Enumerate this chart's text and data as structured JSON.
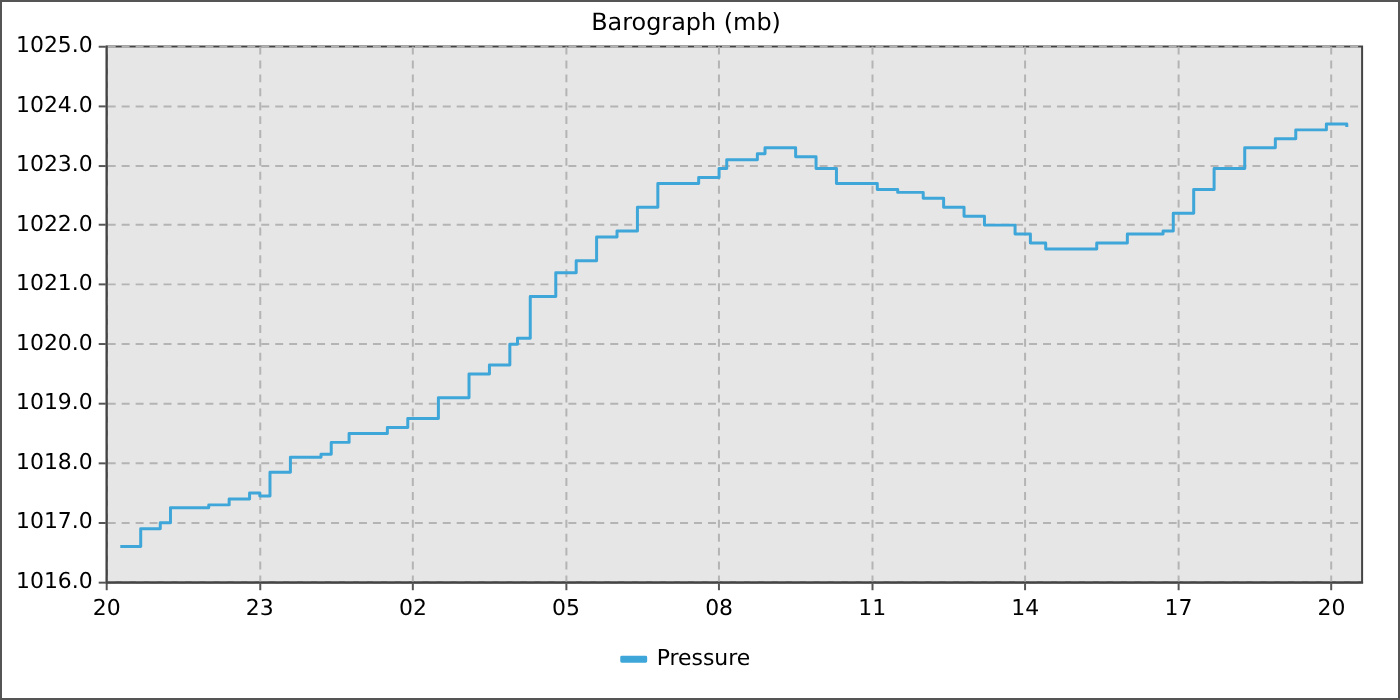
{
  "chart_data": {
    "type": "step",
    "title": "Barograph (mb)",
    "x": [
      "--01-01T20:16",
      "--01-01T20:40",
      "--01-01T21:03",
      "--01-01T21:15",
      "--01-01T22:00",
      "--01-01T22:24",
      "--01-01T22:48",
      "--01-01T23:00",
      "--01-01T23:12",
      "--01-01T23:36",
      "--01-02T00:12",
      "--01-02T00:24",
      "--01-02T00:45",
      "--01-02T01:30",
      "--01-02T01:54",
      "--01-02T02:30",
      "--01-02T03:06",
      "--01-02T03:30",
      "--01-02T03:54",
      "--01-02T04:03",
      "--01-02T04:18",
      "--01-02T04:48",
      "--01-02T05:12",
      "--01-02T05:36",
      "--01-02T06:00",
      "--01-02T06:24",
      "--01-02T06:48",
      "--01-02T07:36",
      "--01-02T08:00",
      "--01-02T08:09",
      "--01-02T08:45",
      "--01-02T08:54",
      "--01-02T09:30",
      "--01-02T09:54",
      "--01-02T10:18",
      "--01-02T11:06",
      "--01-02T11:30",
      "--01-02T12:00",
      "--01-02T12:24",
      "--01-02T12:48",
      "--01-02T13:12",
      "--01-02T13:48",
      "--01-02T14:06",
      "--01-02T14:24",
      "--01-02T15:24",
      "--01-02T16:00",
      "--01-02T16:42",
      "--01-02T16:54",
      "--01-02T17:18",
      "--01-02T17:42",
      "--01-02T18:18",
      "--01-02T18:54",
      "--01-02T19:18",
      "--01-02T19:54",
      "--01-02T20:18"
    ],
    "series": [
      {
        "name": "Pressure",
        "color": "#3ea6d8",
        "values": [
          1016.6,
          1016.9,
          1017.0,
          1017.25,
          1017.3,
          1017.4,
          1017.5,
          1017.45,
          1017.85,
          1018.1,
          1018.15,
          1018.35,
          1018.5,
          1018.6,
          1018.75,
          1019.1,
          1019.5,
          1019.65,
          1020.0,
          1020.1,
          1020.8,
          1021.2,
          1021.4,
          1021.8,
          1021.9,
          1022.3,
          1022.7,
          1022.8,
          1022.95,
          1023.1,
          1023.2,
          1023.3,
          1023.15,
          1022.95,
          1022.7,
          1022.6,
          1022.55,
          1022.45,
          1022.3,
          1022.15,
          1022.0,
          1021.85,
          1021.7,
          1021.6,
          1021.7,
          1021.85,
          1021.9,
          1022.2,
          1022.6,
          1022.95,
          1023.3,
          1023.45,
          1023.6,
          1023.7,
          1023.65
        ]
      }
    ],
    "xlim": [
      "--01-01T20:00",
      "--01-02T20:36"
    ],
    "xticks": [
      {
        "value": "--01-01T20:00",
        "label": "20"
      },
      {
        "value": "--01-01T23:00",
        "label": "23"
      },
      {
        "value": "--01-02T02:00",
        "label": "02"
      },
      {
        "value": "--01-02T05:00",
        "label": "05"
      },
      {
        "value": "--01-02T08:00",
        "label": "08"
      },
      {
        "value": "--01-02T11:00",
        "label": "11"
      },
      {
        "value": "--01-02T14:00",
        "label": "14"
      },
      {
        "value": "--01-02T17:00",
        "label": "17"
      },
      {
        "value": "--01-02T20:00",
        "label": "20"
      }
    ],
    "ylim": [
      1016,
      1025
    ],
    "yticks": [
      {
        "value": 1016,
        "label": "1016.0"
      },
      {
        "value": 1017,
        "label": "1017.0"
      },
      {
        "value": 1018,
        "label": "1018.0"
      },
      {
        "value": 1019,
        "label": "1019.0"
      },
      {
        "value": 1020,
        "label": "1020.0"
      },
      {
        "value": 1021,
        "label": "1021.0"
      },
      {
        "value": 1022,
        "label": "1022.0"
      },
      {
        "value": 1023,
        "label": "1023.0"
      },
      {
        "value": 1024,
        "label": "1024.0"
      },
      {
        "value": 1025,
        "label": "1025.0"
      }
    ],
    "grid": true,
    "legend": "bottom",
    "marker": "none",
    "line_style": "solid"
  }
}
